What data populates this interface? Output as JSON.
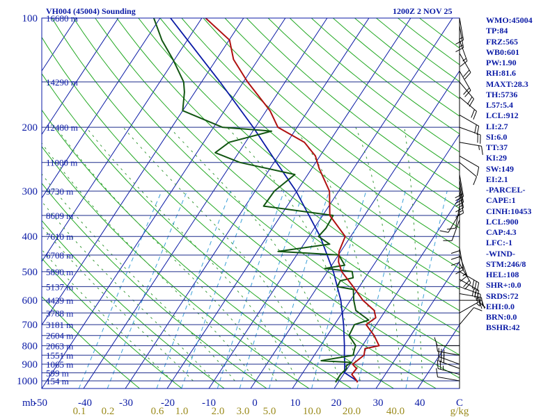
{
  "header": {
    "station": "VH004 (45004) Sounding",
    "time": "1200Z  2 NOV 25"
  },
  "indices": [
    "WMO:45004",
    "TP:84",
    "FRZ:565",
    "WB0:601",
    "PW:1.90",
    "RH:81.6",
    "MAXT:28.3",
    "TH:5736",
    "L57:5.4",
    "LCL:912",
    "LI:2.7",
    "SI:6.0",
    "TT:37",
    "KI:29",
    "SW:149",
    "EI:2.1",
    "-PARCEL-",
    "CAPE:1",
    "CINH:10453",
    "LCL:900",
    "CAP:4.3",
    "LFC:-1",
    "-WIND-",
    "STM:246/8",
    "HEL:108",
    "SHR+:0.0",
    "SRDS:72",
    "EHI:0.0",
    "BRN:0.0",
    "BSHR:42"
  ],
  "colors": {
    "axis_blue": "#0a1aa5",
    "isobar": "#1a2a8a",
    "dry_adiabat": "#22a822",
    "moist_adiabat": "#3a9a3a",
    "mixing_ratio": "#3aa0d8",
    "temperature": "#b01010",
    "dewpoint": "#115511",
    "parcel": "#0a1aa5",
    "wind_barb": "#000000",
    "mixing_label": "#9a8a1a"
  },
  "chart_data": {
    "type": "skew-t",
    "title": "VH004 (45004) Sounding 1200Z 2 NOV 25",
    "xlabel": "Temperature (C)",
    "ylabel": "Pressure (mb)",
    "ylim_mb": [
      1000,
      100
    ],
    "xlim_c": [
      -50,
      50
    ],
    "pressure_labels": [
      "100",
      "200",
      "300",
      "400",
      "500",
      "600",
      "700",
      "800",
      "900",
      "1000"
    ],
    "pressure_unit": "mb",
    "temp_ticks": [
      "-50",
      "-40",
      "-30",
      "-20",
      "-10",
      "0",
      "10",
      "20",
      "30",
      "40",
      "C"
    ],
    "mixing_ratio_labels": [
      "0.1",
      "0.2",
      "0.6",
      "1.0",
      "2.0",
      "3.0",
      "5.0",
      "10.0",
      "20.0",
      "40.0"
    ],
    "mixing_ratio_unit": "g/kg",
    "mixing_ratio_values": [
      0.1,
      0.2,
      0.6,
      1.0,
      2.0,
      3.0,
      5.0,
      10.0,
      20.0,
      40.0
    ],
    "height_levels": [
      {
        "p": 100,
        "label": "16680 m"
      },
      {
        "p": 150,
        "label": "14290 m"
      },
      {
        "p": 200,
        "label": "12480 m"
      },
      {
        "p": 250,
        "label": "11000 m"
      },
      {
        "p": 300,
        "label": "9730 m"
      },
      {
        "p": 350,
        "label": "8609 m"
      },
      {
        "p": 400,
        "label": "7610 m"
      },
      {
        "p": 450,
        "label": "6708 m"
      },
      {
        "p": 500,
        "label": "5890 m"
      },
      {
        "p": 550,
        "label": "5137 m"
      },
      {
        "p": 600,
        "label": "4439 m"
      },
      {
        "p": 650,
        "label": "3788 m"
      },
      {
        "p": 700,
        "label": "3181 m"
      },
      {
        "p": 750,
        "label": "2604 m"
      },
      {
        "p": 800,
        "label": "2063 m"
      },
      {
        "p": 850,
        "label": "1551 m"
      },
      {
        "p": 900,
        "label": "1065 m"
      },
      {
        "p": 950,
        "label": "599 m"
      },
      {
        "p": 1000,
        "label": "154 m"
      }
    ],
    "temperature": [
      [
        1010,
        24.6
      ],
      [
        1000,
        24.2
      ],
      [
        960,
        22.0
      ],
      [
        925,
        22.2
      ],
      [
        900,
        20.6
      ],
      [
        850,
        21.9
      ],
      [
        815,
        21.1
      ],
      [
        800,
        24.0
      ],
      [
        750,
        21.2
      ],
      [
        700,
        17.6
      ],
      [
        670,
        18.8
      ],
      [
        640,
        17.3
      ],
      [
        600,
        13.0
      ],
      [
        550,
        8.5
      ],
      [
        500,
        3.4
      ],
      [
        470,
        1.1
      ],
      [
        440,
        -0.4
      ],
      [
        400,
        -1.3
      ],
      [
        350,
        -8.3
      ],
      [
        300,
        -12.2
      ],
      [
        260,
        -18.2
      ],
      [
        240,
        -21.1
      ],
      [
        220,
        -25.9
      ],
      [
        200,
        -34.6
      ],
      [
        180,
        -39.1
      ],
      [
        150,
        -49.0
      ],
      [
        130,
        -55.9
      ],
      [
        115,
        -59.9
      ],
      [
        100,
        -69.1
      ]
    ],
    "dewpoint": [
      [
        1010,
        19.4
      ],
      [
        1000,
        19.3
      ],
      [
        960,
        19.3
      ],
      [
        925,
        19.8
      ],
      [
        910,
        19.3
      ],
      [
        890,
        20.0
      ],
      [
        880,
        12.5
      ],
      [
        850,
        19.3
      ],
      [
        815,
        18.6
      ],
      [
        800,
        18.4
      ],
      [
        750,
        15.2
      ],
      [
        700,
        14.8
      ],
      [
        680,
        17.5
      ],
      [
        640,
        12.9
      ],
      [
        600,
        10.8
      ],
      [
        560,
        9.0
      ],
      [
        550,
        4.7
      ],
      [
        530,
        4.5
      ],
      [
        520,
        7.1
      ],
      [
        500,
        5.9
      ],
      [
        490,
        -1.1
      ],
      [
        480,
        3.1
      ],
      [
        450,
        0.1
      ],
      [
        440,
        -15.0
      ],
      [
        420,
        -3.8
      ],
      [
        400,
        -7.7
      ],
      [
        380,
        -7.2
      ],
      [
        350,
        -7.5
      ],
      [
        330,
        -25.6
      ],
      [
        300,
        -25.4
      ],
      [
        270,
        -23.1
      ],
      [
        250,
        -38.2
      ],
      [
        235,
        -45.6
      ],
      [
        220,
        -43.9
      ],
      [
        205,
        -35.5
      ],
      [
        200,
        -47.9
      ],
      [
        180,
        -60.0
      ],
      [
        160,
        -62.5
      ],
      [
        150,
        -64.3
      ],
      [
        130,
        -70.4
      ],
      [
        115,
        -76.1
      ],
      [
        100,
        -81.5
      ]
    ],
    "parcel": [
      [
        1000,
        24.2
      ],
      [
        950,
        20.0
      ],
      [
        900,
        18.7
      ],
      [
        850,
        17.2
      ],
      [
        800,
        15.7
      ],
      [
        700,
        12.2
      ],
      [
        600,
        7.7
      ],
      [
        500,
        1.4
      ],
      [
        400,
        -7.3
      ],
      [
        300,
        -20.2
      ],
      [
        250,
        -29.4
      ],
      [
        200,
        -40.5
      ],
      [
        150,
        -55.6
      ],
      [
        100,
        -77.5
      ]
    ],
    "winds": [
      {
        "p": 1000,
        "dir": 280,
        "spd": 10
      },
      {
        "p": 960,
        "dir": 285,
        "spd": 25
      },
      {
        "p": 925,
        "dir": 290,
        "spd": 30
      },
      {
        "p": 900,
        "dir": 290,
        "spd": 30
      },
      {
        "p": 850,
        "dir": 280,
        "spd": 10
      },
      {
        "p": 800,
        "dir": 270,
        "spd": 10
      },
      {
        "p": 700,
        "dir": 40,
        "spd": 10
      },
      {
        "p": 650,
        "dir": 60,
        "spd": 15
      },
      {
        "p": 600,
        "dir": 90,
        "spd": 20
      },
      {
        "p": 575,
        "dir": 100,
        "spd": 25
      },
      {
        "p": 550,
        "dir": 110,
        "spd": 25
      },
      {
        "p": 525,
        "dir": 120,
        "spd": 30
      },
      {
        "p": 500,
        "dir": 120,
        "spd": 30
      },
      {
        "p": 475,
        "dir": 150,
        "spd": 20
      },
      {
        "p": 450,
        "dir": 160,
        "spd": 15
      },
      {
        "p": 430,
        "dir": 170,
        "spd": 15
      },
      {
        "p": 410,
        "dir": 180,
        "spd": 10
      },
      {
        "p": 395,
        "dir": 180,
        "spd": 10
      },
      {
        "p": 380,
        "dir": 180,
        "spd": 10
      },
      {
        "p": 360,
        "dir": 200,
        "spd": 10
      },
      {
        "p": 345,
        "dir": 210,
        "spd": 10
      },
      {
        "p": 330,
        "dir": 190,
        "spd": 10
      },
      {
        "p": 300,
        "dir": 170,
        "spd": 15
      },
      {
        "p": 290,
        "dir": 170,
        "spd": 15
      },
      {
        "p": 280,
        "dir": 170,
        "spd": 20
      },
      {
        "p": 270,
        "dir": 170,
        "spd": 20
      },
      {
        "p": 250,
        "dir": 130,
        "spd": 10
      },
      {
        "p": 240,
        "dir": 120,
        "spd": 10
      },
      {
        "p": 220,
        "dir": 100,
        "spd": 15
      },
      {
        "p": 200,
        "dir": 110,
        "spd": 20
      },
      {
        "p": 185,
        "dir": 120,
        "spd": 20
      },
      {
        "p": 165,
        "dir": 130,
        "spd": 20
      },
      {
        "p": 150,
        "dir": 140,
        "spd": 20
      },
      {
        "p": 140,
        "dir": 150,
        "spd": 20
      },
      {
        "p": 125,
        "dir": 150,
        "spd": 20
      },
      {
        "p": 115,
        "dir": 160,
        "spd": 15
      },
      {
        "p": 105,
        "dir": 170,
        "spd": 15
      },
      {
        "p": 100,
        "dir": 170,
        "spd": 15
      }
    ]
  }
}
